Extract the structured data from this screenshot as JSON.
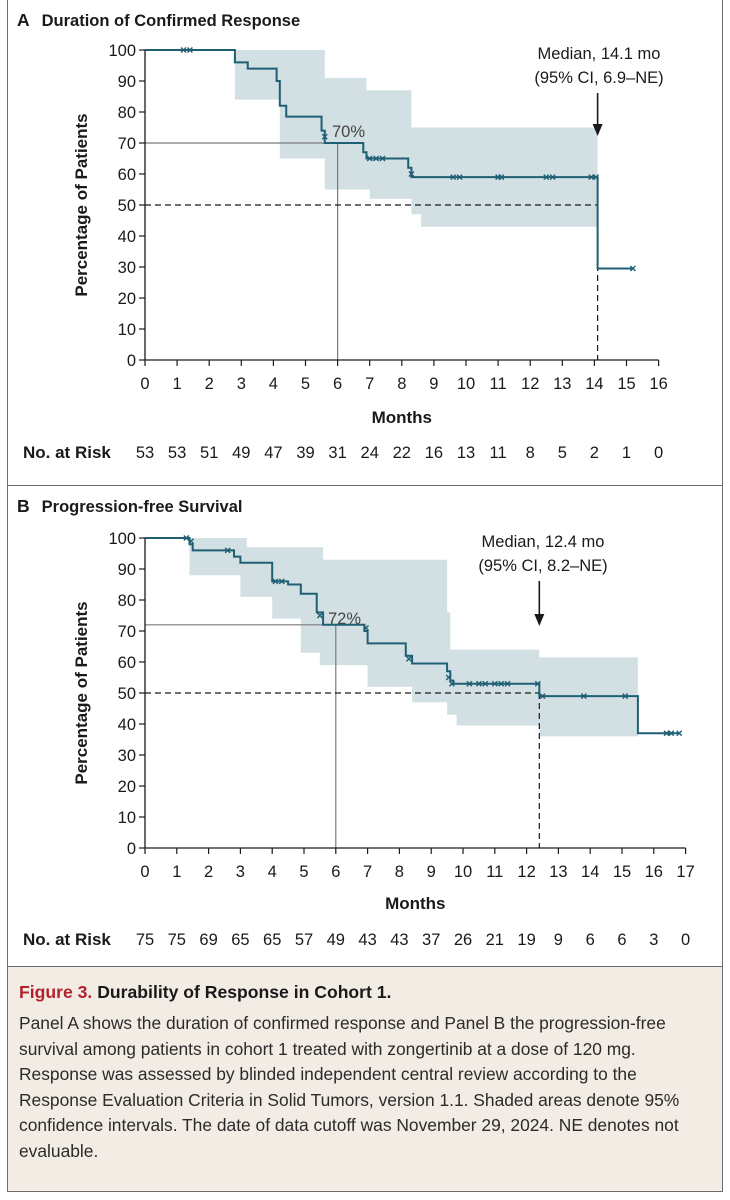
{
  "chart_data": [
    {
      "type": "line",
      "panel_letter": "A",
      "title": "Duration of Confirmed Response",
      "xlabel": "Months",
      "ylabel": "Percentage of Patients",
      "xlim": [
        0,
        16
      ],
      "ylim": [
        0,
        100
      ],
      "xticks": [
        0,
        1,
        2,
        3,
        4,
        5,
        6,
        7,
        8,
        9,
        10,
        11,
        12,
        13,
        14,
        15,
        16
      ],
      "yticks": [
        0,
        10,
        20,
        30,
        40,
        50,
        60,
        70,
        80,
        90,
        100
      ],
      "series": [
        {
          "name": "Duration of confirmed response",
          "color": "#1f5f74",
          "step_points": [
            [
              0,
              100
            ],
            [
              2.8,
              100
            ],
            [
              2.8,
              96
            ],
            [
              3.2,
              96
            ],
            [
              3.2,
              94
            ],
            [
              4.1,
              94
            ],
            [
              4.1,
              90
            ],
            [
              4.2,
              90
            ],
            [
              4.2,
              82
            ],
            [
              4.4,
              82
            ],
            [
              4.4,
              78.5
            ],
            [
              5.5,
              78.5
            ],
            [
              5.5,
              74
            ],
            [
              5.6,
              74
            ],
            [
              5.6,
              70
            ],
            [
              6.8,
              70
            ],
            [
              6.8,
              67
            ],
            [
              6.9,
              67
            ],
            [
              6.9,
              65
            ],
            [
              8.2,
              65
            ],
            [
              8.2,
              62
            ],
            [
              8.3,
              62
            ],
            [
              8.3,
              59
            ],
            [
              14.1,
              59
            ],
            [
              14.1,
              29.5
            ],
            [
              15.2,
              29.5
            ]
          ],
          "censored": [
            [
              1.2,
              100
            ],
            [
              1.4,
              100
            ],
            [
              5.6,
              72
            ],
            [
              7.0,
              65
            ],
            [
              7.2,
              65
            ],
            [
              7.4,
              65
            ],
            [
              8.3,
              60
            ],
            [
              9.6,
              59
            ],
            [
              9.8,
              59
            ],
            [
              11.0,
              59
            ],
            [
              11.1,
              59
            ],
            [
              12.5,
              59
            ],
            [
              12.7,
              59
            ],
            [
              13.9,
              59
            ],
            [
              14.05,
              59
            ],
            [
              15.2,
              29.5
            ]
          ],
          "ci_upper": [
            [
              0,
              100
            ],
            [
              2.8,
              100
            ],
            [
              2.8,
              100
            ],
            [
              5.6,
              100
            ],
            [
              5.6,
              91
            ],
            [
              6.9,
              91
            ],
            [
              6.9,
              87
            ],
            [
              8.3,
              87
            ],
            [
              8.3,
              75
            ],
            [
              14.1,
              75
            ],
            [
              14.1,
              72
            ]
          ],
          "ci_lower": [
            [
              0,
              100
            ],
            [
              2.8,
              100
            ],
            [
              2.8,
              84
            ],
            [
              4.2,
              84
            ],
            [
              4.2,
              65
            ],
            [
              5.6,
              65
            ],
            [
              5.6,
              55
            ],
            [
              7.0,
              55
            ],
            [
              7.0,
              52
            ],
            [
              8.3,
              52
            ],
            [
              8.3,
              47
            ],
            [
              8.6,
              47
            ],
            [
              8.6,
              43
            ],
            [
              14.1,
              43
            ]
          ]
        }
      ],
      "reference_lines": {
        "solid_pct": 70,
        "solid_month": 6,
        "dashed_pct": 50,
        "median_month": 14.1
      },
      "annotations": {
        "pct_label": "70%",
        "median_label_line1": "Median, 14.1 mo",
        "median_label_line2": "(95% CI, 6.9–NE)"
      },
      "at_risk_label": "No. at Risk",
      "at_risk": [
        "53",
        "53",
        "51",
        "49",
        "47",
        "39",
        "31",
        "24",
        "22",
        "16",
        "13",
        "11",
        "8",
        "5",
        "2",
        "1",
        "0"
      ]
    },
    {
      "type": "line",
      "panel_letter": "B",
      "title": "Progression-free Survival",
      "xlabel": "Months",
      "ylabel": "Percentage of Patients",
      "xlim": [
        0,
        17
      ],
      "ylim": [
        0,
        100
      ],
      "xticks": [
        0,
        1,
        2,
        3,
        4,
        5,
        6,
        7,
        8,
        9,
        10,
        11,
        12,
        13,
        14,
        15,
        16,
        17
      ],
      "yticks": [
        0,
        10,
        20,
        30,
        40,
        50,
        60,
        70,
        80,
        90,
        100
      ],
      "series": [
        {
          "name": "Progression-free survival",
          "color": "#1f5f74",
          "step_points": [
            [
              0,
              100
            ],
            [
              1.4,
              100
            ],
            [
              1.4,
              98
            ],
            [
              1.5,
              98
            ],
            [
              1.5,
              96
            ],
            [
              2.8,
              96
            ],
            [
              2.8,
              94
            ],
            [
              3.0,
              94
            ],
            [
              3.0,
              92
            ],
            [
              4.0,
              92
            ],
            [
              4.0,
              86
            ],
            [
              4.5,
              86
            ],
            [
              4.5,
              85
            ],
            [
              4.9,
              85
            ],
            [
              4.9,
              82
            ],
            [
              5.4,
              82
            ],
            [
              5.4,
              76
            ],
            [
              5.6,
              76
            ],
            [
              5.6,
              72
            ],
            [
              6.9,
              72
            ],
            [
              6.9,
              70
            ],
            [
              7.0,
              70
            ],
            [
              7.0,
              66
            ],
            [
              8.2,
              66
            ],
            [
              8.2,
              62
            ],
            [
              8.4,
              62
            ],
            [
              8.4,
              59.5
            ],
            [
              9.5,
              59.5
            ],
            [
              9.5,
              57
            ],
            [
              9.6,
              57
            ],
            [
              9.6,
              54
            ],
            [
              9.7,
              54
            ],
            [
              9.7,
              53
            ],
            [
              12.4,
              53
            ],
            [
              12.4,
              49
            ],
            [
              15.5,
              49
            ],
            [
              15.5,
              37
            ],
            [
              16.8,
              37
            ]
          ],
          "censored": [
            [
              1.3,
              100
            ],
            [
              1.45,
              99
            ],
            [
              2.6,
              96
            ],
            [
              4.1,
              86
            ],
            [
              4.3,
              86
            ],
            [
              5.5,
              75
            ],
            [
              6.95,
              71
            ],
            [
              8.3,
              61
            ],
            [
              9.55,
              55
            ],
            [
              9.65,
              53
            ],
            [
              10.2,
              53
            ],
            [
              10.5,
              53
            ],
            [
              10.7,
              53
            ],
            [
              11.0,
              53
            ],
            [
              11.2,
              53
            ],
            [
              11.4,
              53
            ],
            [
              12.35,
              53
            ],
            [
              12.5,
              49
            ],
            [
              13.8,
              49
            ],
            [
              15.1,
              49
            ],
            [
              16.4,
              37
            ],
            [
              16.55,
              37
            ],
            [
              16.8,
              37
            ]
          ],
          "ci_upper": [
            [
              0,
              100
            ],
            [
              1.4,
              100
            ],
            [
              1.5,
              100
            ],
            [
              3.2,
              100
            ],
            [
              3.2,
              97
            ],
            [
              5.6,
              97
            ],
            [
              5.6,
              93
            ],
            [
              9.5,
              93
            ],
            [
              9.5,
              76
            ],
            [
              9.6,
              76
            ],
            [
              9.6,
              64
            ],
            [
              12.4,
              64
            ],
            [
              12.4,
              61.5
            ],
            [
              15.5,
              61.5
            ]
          ],
          "ci_lower": [
            [
              0,
              100
            ],
            [
              1.4,
              100
            ],
            [
              1.4,
              88
            ],
            [
              3.0,
              88
            ],
            [
              3.0,
              81
            ],
            [
              4.0,
              81
            ],
            [
              4.0,
              74
            ],
            [
              4.9,
              74
            ],
            [
              4.9,
              63
            ],
            [
              5.5,
              63
            ],
            [
              5.5,
              59
            ],
            [
              7.0,
              59
            ],
            [
              7.0,
              52
            ],
            [
              8.4,
              52
            ],
            [
              8.4,
              47
            ],
            [
              9.5,
              47
            ],
            [
              9.5,
              43
            ],
            [
              9.8,
              43
            ],
            [
              9.8,
              39.5
            ],
            [
              12.4,
              39.5
            ],
            [
              12.4,
              36
            ],
            [
              15.5,
              36
            ]
          ]
        }
      ],
      "reference_lines": {
        "solid_pct": 72,
        "solid_month": 6,
        "dashed_pct": 50,
        "median_month": 12.4
      },
      "annotations": {
        "pct_label": "72%",
        "median_label_line1": "Median, 12.4 mo",
        "median_label_line2": "(95% CI, 8.2–NE)"
      },
      "at_risk_label": "No. at Risk",
      "at_risk": [
        "75",
        "75",
        "69",
        "65",
        "65",
        "57",
        "49",
        "43",
        "43",
        "37",
        "26",
        "21",
        "19",
        "9",
        "6",
        "6",
        "3",
        "0"
      ]
    }
  ],
  "caption": {
    "figure_label": "Figure 3.",
    "title": "Durability of Response in Cohort 1.",
    "body": "Panel A shows the duration of confirmed response and Panel B the progression-free survival among patients in cohort 1 treated with zongertinib at a dose of 120 mg. Response was assessed by blinded independent central review according to the Response Evaluation Criteria in Solid Tumors, version 1.1. Shaded areas denote 95% confidence intervals. The date of data cutoff was November 29, 2024. NE denotes not evaluable."
  },
  "colors": {
    "curve": "#1f5f74",
    "ci_fill": "#d3e0e3",
    "axis": "#1a1a1a",
    "reference": "#7a7a7a",
    "caption_bg": "#f2ece5",
    "figure_label": "#b3212b"
  }
}
